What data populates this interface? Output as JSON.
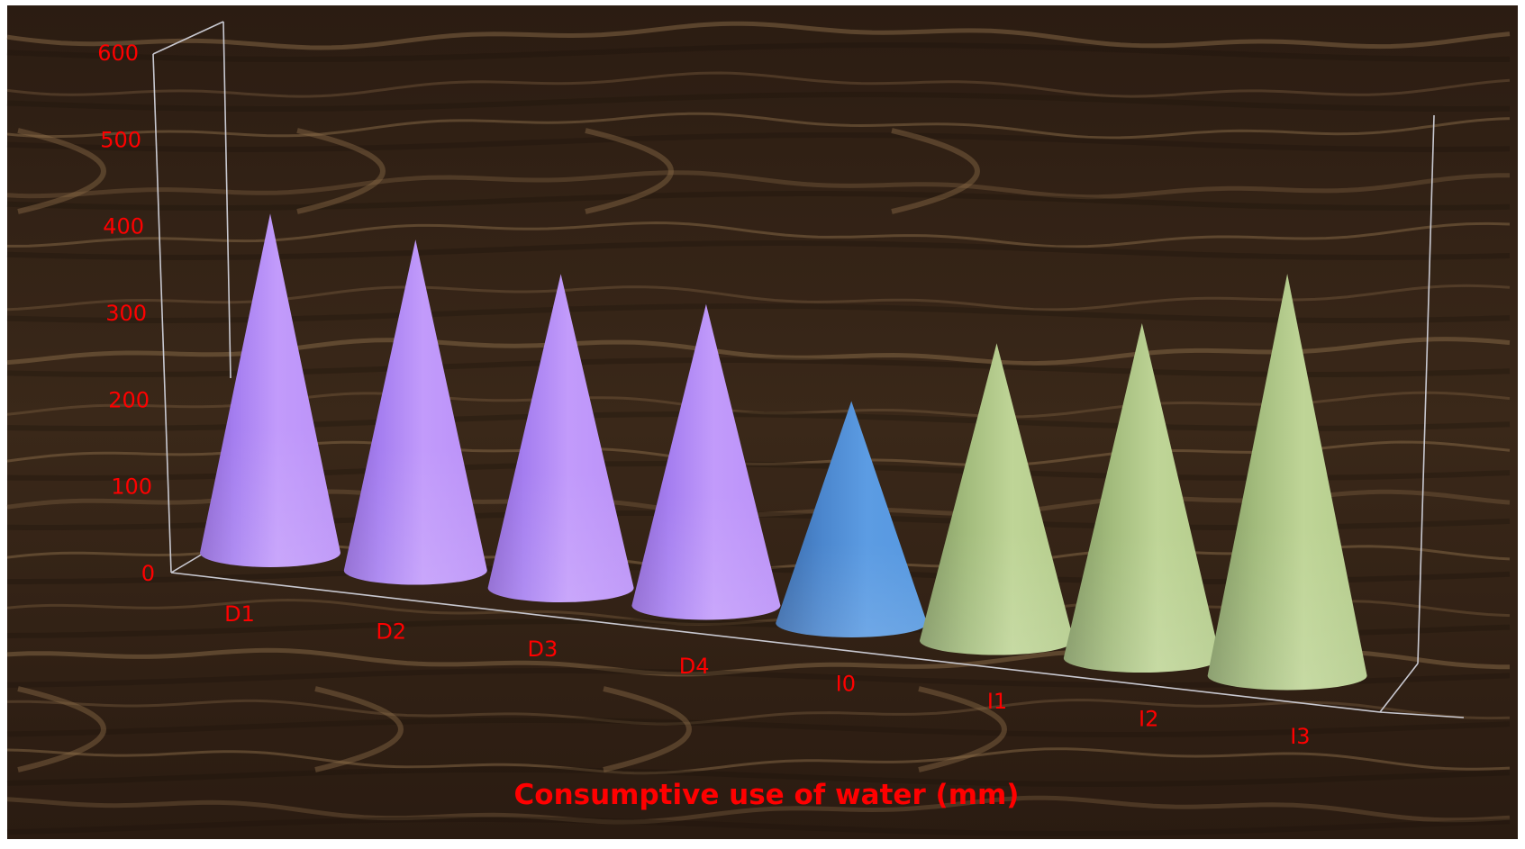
{
  "colors": {
    "label_red": "#ff0000",
    "axis_line": "#c8c8d0",
    "wood_dark": "#2f2016",
    "wood_mid": "#3b2a1c",
    "wood_grain": "#8a6b48",
    "purple": "#b58cf8",
    "blue": "#4f8fd8",
    "green": "#b7cf8e"
  },
  "chart_data": {
    "type": "bar",
    "style": "3d-cone",
    "xlabel": "Consumptive use of water (mm)",
    "ylabel": "",
    "ylim": [
      0,
      600
    ],
    "yticks": [
      0,
      100,
      200,
      300,
      400,
      500,
      600
    ],
    "categories": [
      "D1",
      "D2",
      "D3",
      "D4",
      "I0",
      "I1",
      "I2",
      "I3"
    ],
    "values": [
      405,
      395,
      375,
      360,
      265,
      355,
      400,
      480
    ],
    "point_colors": [
      "purple",
      "purple",
      "purple",
      "purple",
      "blue",
      "green",
      "green",
      "green"
    ],
    "grid": false,
    "legend": "none",
    "background": "wood-texture"
  }
}
